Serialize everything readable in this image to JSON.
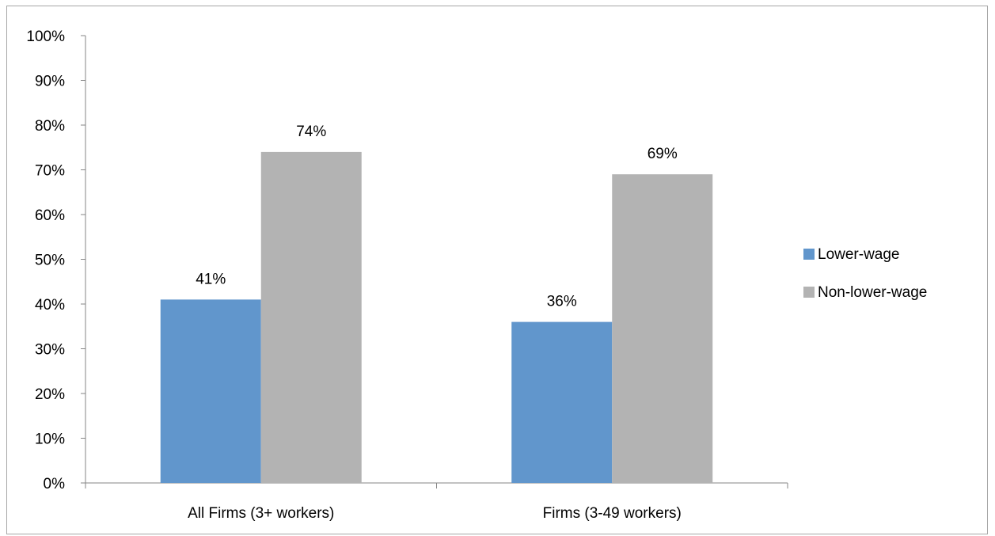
{
  "chart_data": {
    "type": "bar",
    "categories": [
      "All Firms (3+ workers)",
      "Firms (3-49 workers)"
    ],
    "series": [
      {
        "name": "Lower-wage",
        "values": [
          41,
          36
        ],
        "labels": [
          "41%",
          "36%"
        ],
        "color": "#6196cc"
      },
      {
        "name": "Non-lower-wage",
        "values": [
          74,
          69
        ],
        "labels": [
          "74%",
          "69%"
        ],
        "color": "#b3b3b3"
      }
    ],
    "ylim": [
      0,
      100
    ],
    "ytick_values": [
      0,
      10,
      20,
      30,
      40,
      50,
      60,
      70,
      80,
      90,
      100
    ],
    "ytick_labels": [
      "0%",
      "10%",
      "20%",
      "30%",
      "40%",
      "50%",
      "60%",
      "70%",
      "80%",
      "90%",
      "100%"
    ],
    "grid": false,
    "legend_position": "right",
    "title": "",
    "xlabel": "",
    "ylabel": ""
  }
}
